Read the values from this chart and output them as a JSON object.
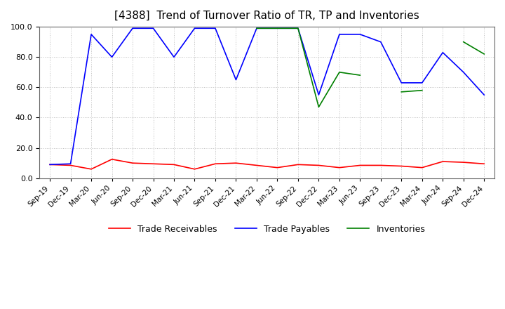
{
  "title": "[4388]  Trend of Turnover Ratio of TR, TP and Inventories",
  "xlabels": [
    "Sep-19",
    "Dec-19",
    "Mar-20",
    "Jun-20",
    "Sep-20",
    "Dec-20",
    "Mar-21",
    "Jun-21",
    "Sep-21",
    "Dec-21",
    "Mar-22",
    "Jun-22",
    "Sep-22",
    "Dec-22",
    "Mar-23",
    "Jun-23",
    "Sep-23",
    "Dec-23",
    "Mar-24",
    "Jun-24",
    "Sep-24",
    "Dec-24"
  ],
  "trade_receivables": [
    9.0,
    8.5,
    6.0,
    12.5,
    10.0,
    9.5,
    9.0,
    6.0,
    9.5,
    10.0,
    8.5,
    7.0,
    9.0,
    8.5,
    7.0,
    8.5,
    8.5,
    8.0,
    7.0,
    11.0,
    10.5,
    9.5
  ],
  "trade_payables": [
    9.0,
    9.5,
    95.0,
    80.0,
    99.0,
    99.0,
    80.0,
    99.0,
    99.0,
    65.0,
    99.0,
    99.0,
    99.0,
    55.0,
    95.0,
    95.0,
    90.0,
    63.0,
    63.0,
    83.0,
    70.0,
    55.0
  ],
  "inventories": [
    null,
    null,
    null,
    null,
    null,
    null,
    null,
    null,
    null,
    null,
    99.0,
    99.0,
    99.0,
    47.0,
    70.0,
    68.0,
    null,
    57.0,
    58.0,
    null,
    90.0,
    82.0
  ],
  "ylim": [
    0.0,
    100.0
  ],
  "yticks": [
    0.0,
    20.0,
    40.0,
    60.0,
    80.0,
    100.0
  ],
  "tr_color": "#ff0000",
  "tp_color": "#0000ff",
  "inv_color": "#008000",
  "bg_color": "#ffffff",
  "grid_color": "#b0b0b0",
  "title_fontsize": 11,
  "legend_labels": [
    "Trade Receivables",
    "Trade Payables",
    "Inventories"
  ]
}
